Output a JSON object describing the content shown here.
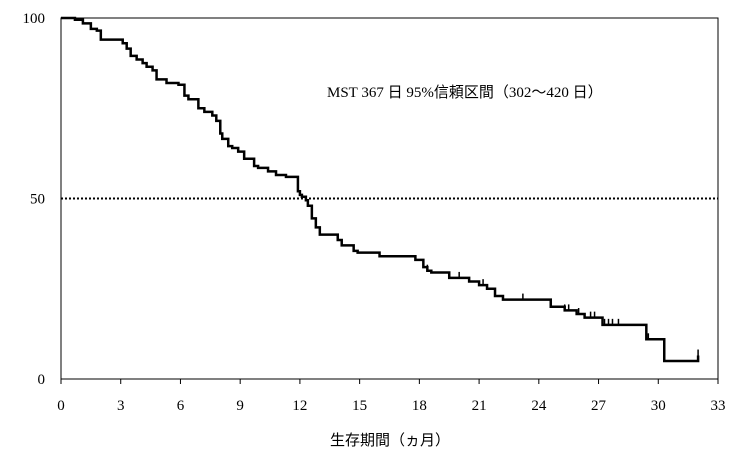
{
  "chart_data": {
    "type": "line",
    "title": "",
    "xlabel": "生存期間（ヵ月）",
    "ylabel": "",
    "xlim": [
      0,
      33
    ],
    "ylim": [
      0,
      100
    ],
    "x_ticks": [
      0,
      3,
      6,
      9,
      12,
      15,
      18,
      21,
      24,
      27,
      30,
      33
    ],
    "y_ticks": [
      0,
      50,
      100
    ],
    "grid": false,
    "legend": "none",
    "annotation": "MST 367 日 95%信頼区間（302〜420 日）",
    "reference_line": {
      "y": 50,
      "style": "dotted"
    },
    "series": [
      {
        "steps": [
          [
            0,
            100
          ],
          [
            0.7,
            99.5
          ],
          [
            1.1,
            98.5
          ],
          [
            1.5,
            97
          ],
          [
            1.8,
            96.5
          ],
          [
            2.0,
            94
          ],
          [
            3.1,
            93
          ],
          [
            3.3,
            91.5
          ],
          [
            3.5,
            89.5
          ],
          [
            3.8,
            88.5
          ],
          [
            4.1,
            87.5
          ],
          [
            4.3,
            86.5
          ],
          [
            4.6,
            85.5
          ],
          [
            4.8,
            83
          ],
          [
            5.3,
            82
          ],
          [
            5.9,
            81.5
          ],
          [
            6.2,
            78.5
          ],
          [
            6.4,
            77.5
          ],
          [
            6.9,
            75
          ],
          [
            7.2,
            74
          ],
          [
            7.6,
            73
          ],
          [
            7.8,
            71.5
          ],
          [
            8.0,
            68
          ],
          [
            8.1,
            66.5
          ],
          [
            8.4,
            64.5
          ],
          [
            8.6,
            64
          ],
          [
            8.9,
            63
          ],
          [
            9.2,
            61
          ],
          [
            9.7,
            59
          ],
          [
            9.9,
            58.5
          ],
          [
            10.4,
            57.5
          ],
          [
            10.8,
            56.5
          ],
          [
            11.3,
            56
          ],
          [
            11.9,
            52
          ],
          [
            12.0,
            51
          ],
          [
            12.1,
            50.5
          ],
          [
            12.3,
            49.5
          ],
          [
            12.4,
            48
          ],
          [
            12.6,
            44.5
          ],
          [
            12.8,
            42
          ],
          [
            13.0,
            40
          ],
          [
            13.9,
            38.5
          ],
          [
            14.1,
            37
          ],
          [
            14.7,
            35.5
          ],
          [
            14.9,
            35
          ],
          [
            16.0,
            34
          ],
          [
            17.8,
            33
          ],
          [
            18.2,
            31
          ],
          [
            18.4,
            30
          ],
          [
            18.6,
            29.5
          ],
          [
            19.5,
            28
          ],
          [
            20.5,
            27
          ],
          [
            21.0,
            26
          ],
          [
            21.4,
            25
          ],
          [
            21.8,
            23
          ],
          [
            22.2,
            22
          ],
          [
            24.6,
            20
          ],
          [
            25.3,
            19
          ],
          [
            25.9,
            18
          ],
          [
            26.3,
            17
          ],
          [
            27.2,
            15
          ],
          [
            29.4,
            11
          ],
          [
            30.3,
            5
          ],
          [
            32.0,
            6.5
          ]
        ],
        "censored": [
          14.7,
          18.2,
          18.4,
          20.0,
          21.2,
          23.2,
          25.3,
          25.5,
          26.0,
          26.6,
          26.8,
          27.3,
          27.5,
          27.7,
          28.0,
          29.5,
          32.0
        ]
      }
    ]
  }
}
